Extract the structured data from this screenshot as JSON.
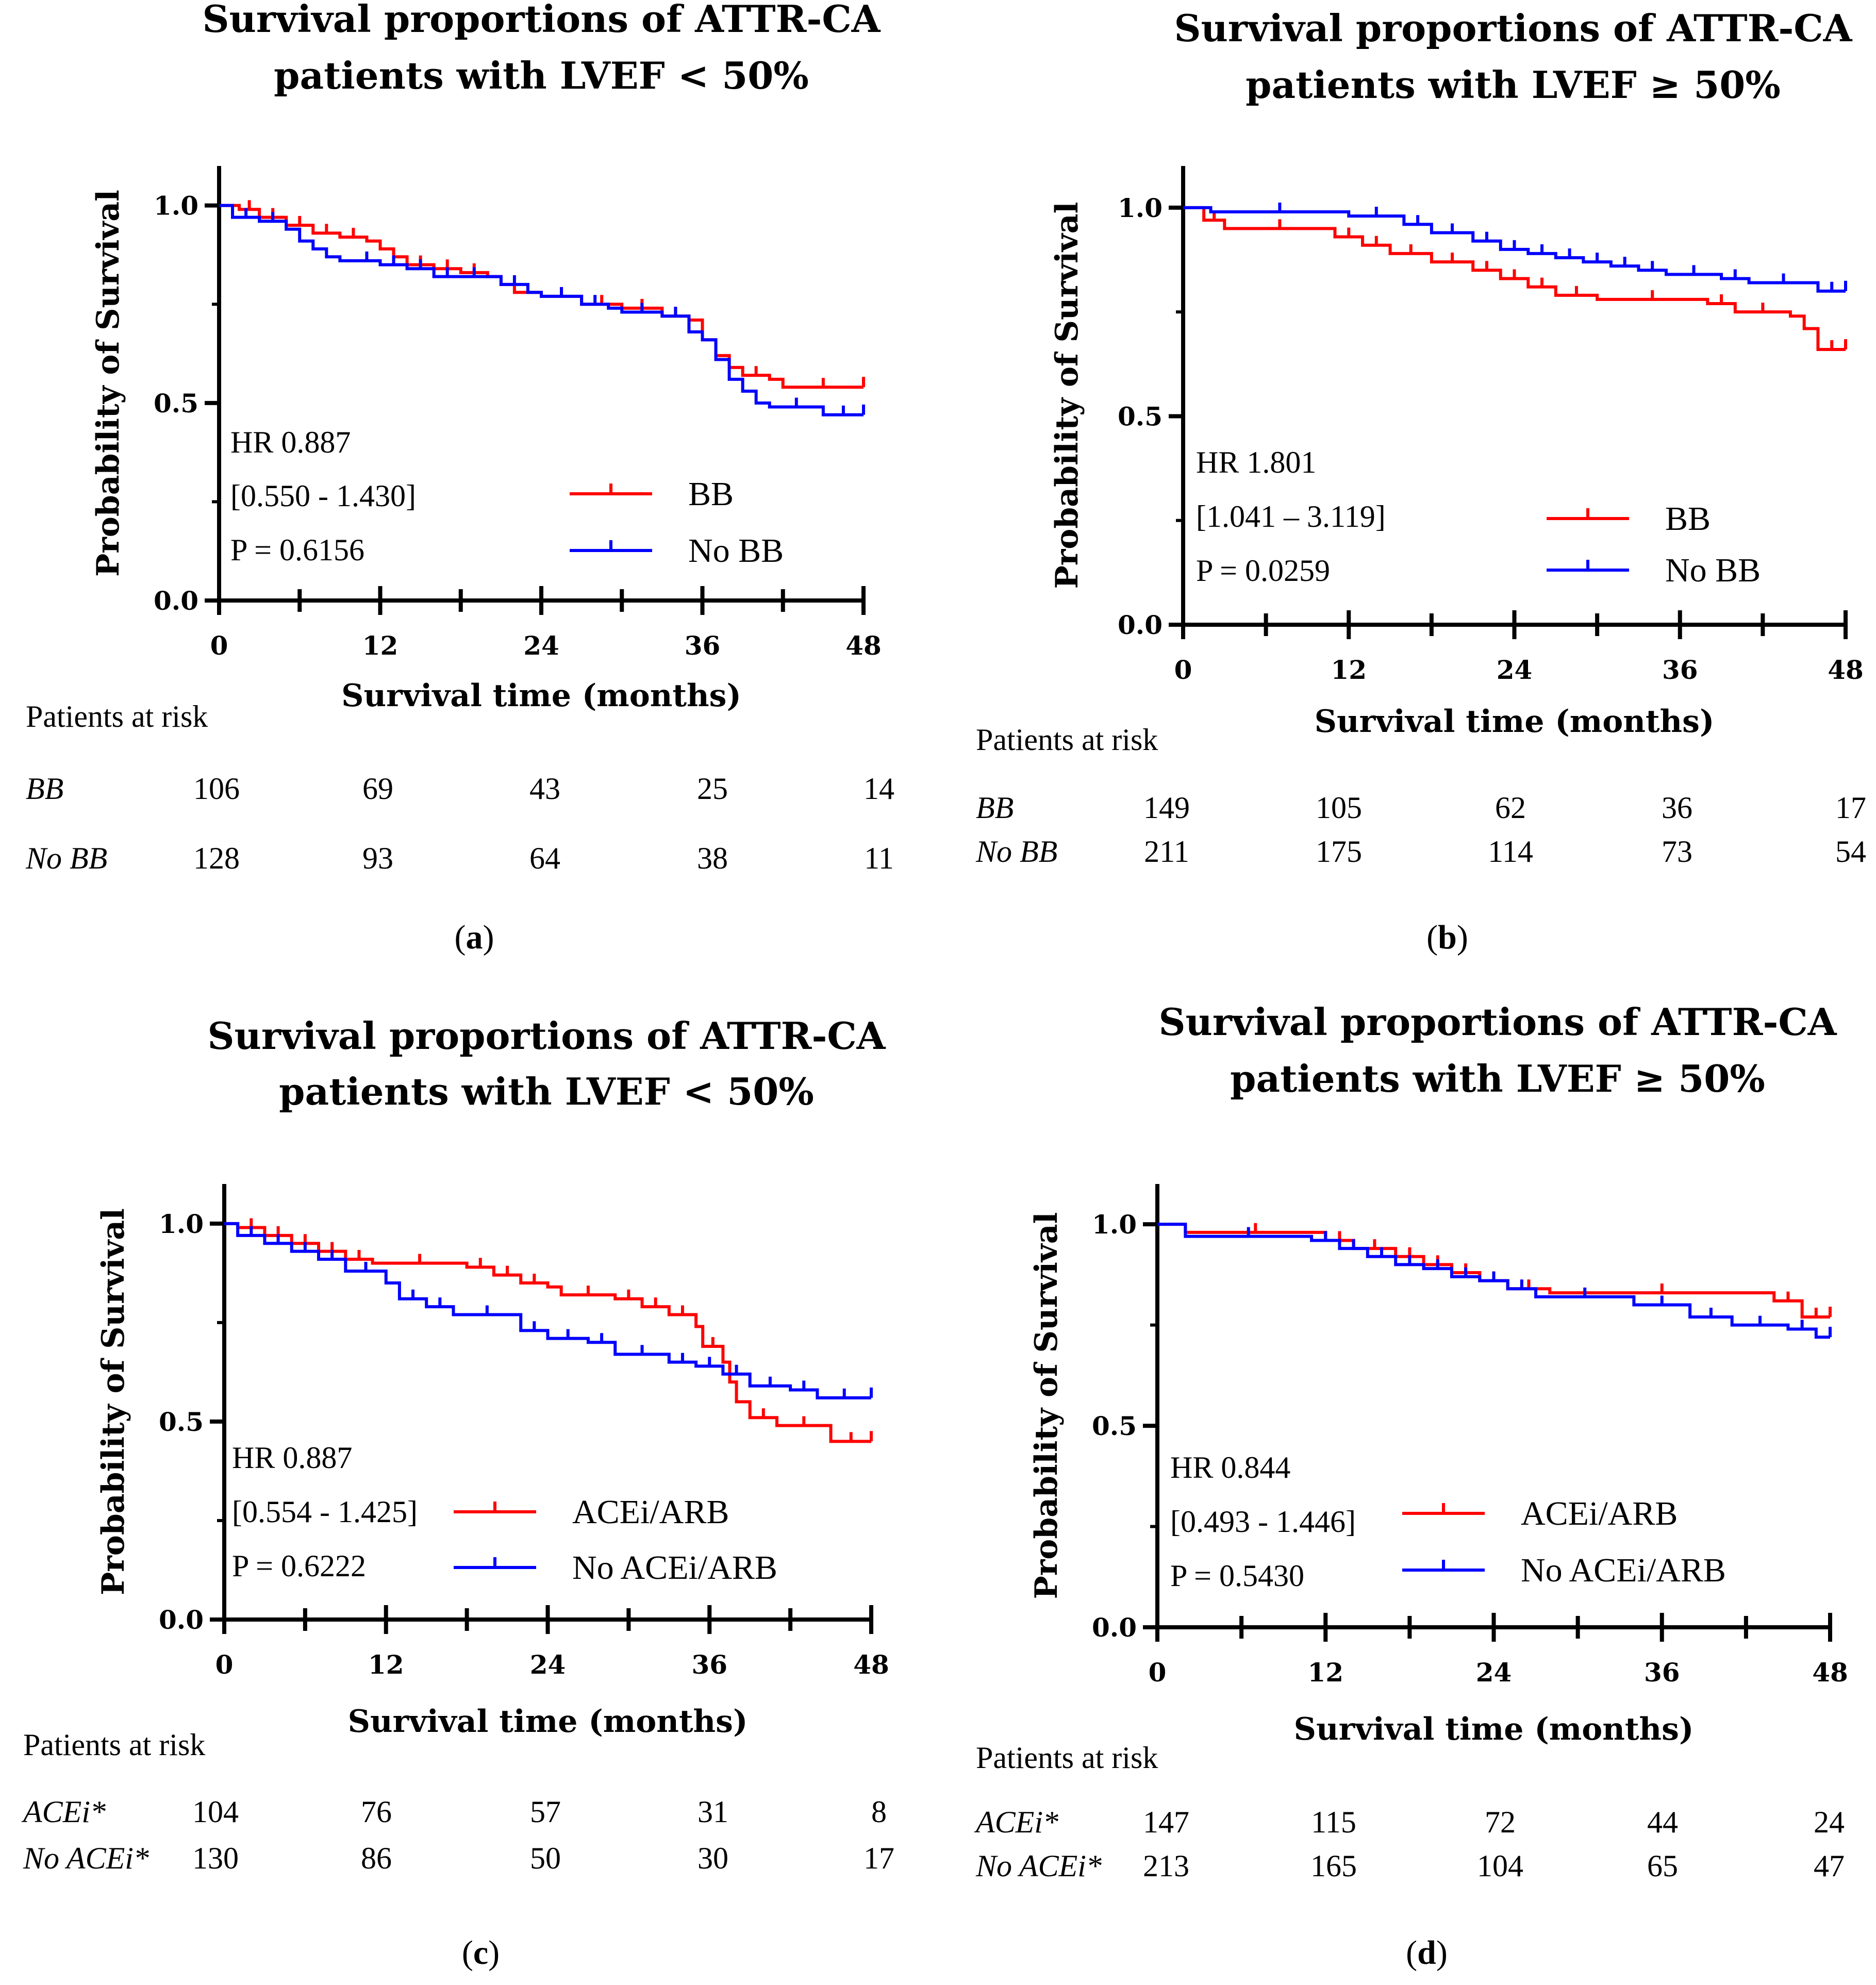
{
  "colors": {
    "treated": "#ff0000",
    "untreated": "#0000ff",
    "axis": "#000000"
  },
  "chart_data": [
    {
      "type": "line",
      "panel_label": "a",
      "title_line1": "Survival proportions of ATTR-CA",
      "title_line2": "patients with LVEF < 50%",
      "xlabel": "Survival time (months)",
      "ylabel": "Probability of Survival",
      "xlim": [
        0,
        48
      ],
      "ylim": [
        0,
        1.1
      ],
      "xticks": [
        "0",
        "12",
        "24",
        "36",
        "48"
      ],
      "yticks": [
        "0.0",
        "0.5",
        "1.0"
      ],
      "stats": {
        "hr": "HR 0.887",
        "ci": "[0.550 - 1.430]",
        "p": "P = 0.6156"
      },
      "series": [
        {
          "name": "BB",
          "color": "#ff0000",
          "x": [
            0,
            1.5,
            3,
            5,
            7,
            9,
            11,
            12,
            13,
            14,
            16,
            18,
            20,
            21,
            22,
            24,
            27,
            30,
            33,
            35,
            36,
            37,
            38,
            39,
            41,
            42,
            48
          ],
          "y": [
            1.0,
            0.99,
            0.97,
            0.95,
            0.93,
            0.92,
            0.91,
            0.89,
            0.87,
            0.85,
            0.84,
            0.83,
            0.82,
            0.8,
            0.78,
            0.77,
            0.75,
            0.74,
            0.72,
            0.71,
            0.66,
            0.62,
            0.59,
            0.57,
            0.56,
            0.54,
            0.54
          ]
        },
        {
          "name": "No BB",
          "color": "#0000ff",
          "x": [
            0,
            1,
            3,
            5,
            6,
            7,
            8,
            9,
            10,
            12,
            14,
            16,
            18,
            20,
            21,
            23,
            24,
            27,
            29,
            30,
            33,
            35,
            36,
            37,
            38,
            39,
            40,
            41,
            45,
            48
          ],
          "y": [
            1.0,
            0.97,
            0.96,
            0.94,
            0.91,
            0.89,
            0.87,
            0.86,
            0.86,
            0.85,
            0.84,
            0.82,
            0.82,
            0.82,
            0.8,
            0.78,
            0.77,
            0.75,
            0.74,
            0.73,
            0.72,
            0.68,
            0.66,
            0.61,
            0.56,
            0.53,
            0.5,
            0.49,
            0.47,
            0.47
          ]
        }
      ],
      "risk_table": {
        "heading": "Patients at risk",
        "rows": [
          {
            "label": "BB",
            "values": [
              "106",
              "69",
              "43",
              "25",
              "14"
            ]
          },
          {
            "label": "No BB",
            "values": [
              "128",
              "93",
              "64",
              "38",
              "11"
            ]
          }
        ]
      }
    },
    {
      "type": "line",
      "panel_label": "b",
      "title_line1": "Survival proportions of ATTR-CA",
      "title_line2": "patients with LVEF ≥ 50%",
      "xlabel": "Survival time (months)",
      "ylabel": "Probability of Survival",
      "xlim": [
        0,
        48
      ],
      "ylim": [
        0,
        1.1
      ],
      "xticks": [
        "0",
        "12",
        "24",
        "36",
        "48"
      ],
      "yticks": [
        "0.0",
        "0.5",
        "1.0"
      ],
      "stats": {
        "hr": "HR 1.801",
        "ci": "[1.041 – 3.119]",
        "p": "P = 0.0259"
      },
      "series": [
        {
          "name": "BB",
          "color": "#ff0000",
          "x": [
            0,
            1.5,
            3,
            11,
            13,
            15,
            18,
            21,
            23,
            25,
            27,
            30,
            38,
            40,
            44,
            45,
            46,
            48
          ],
          "y": [
            1.0,
            0.97,
            0.95,
            0.93,
            0.91,
            0.89,
            0.87,
            0.85,
            0.83,
            0.81,
            0.79,
            0.78,
            0.77,
            0.75,
            0.74,
            0.71,
            0.66,
            0.66
          ]
        },
        {
          "name": "No BB",
          "color": "#0000ff",
          "x": [
            0,
            2,
            12,
            16,
            18,
            21,
            23,
            25,
            27,
            29,
            31,
            33,
            35,
            39,
            41,
            46,
            48
          ],
          "y": [
            1.0,
            0.99,
            0.98,
            0.96,
            0.94,
            0.92,
            0.9,
            0.89,
            0.88,
            0.87,
            0.86,
            0.85,
            0.84,
            0.83,
            0.82,
            0.8,
            0.8
          ]
        }
      ],
      "risk_table": {
        "heading": "Patients at risk",
        "rows": [
          {
            "label": "BB",
            "values": [
              "149",
              "105",
              "62",
              "36",
              "17"
            ]
          },
          {
            "label": "No BB",
            "values": [
              "211",
              "175",
              "114",
              "73",
              "54"
            ]
          }
        ]
      }
    },
    {
      "type": "line",
      "panel_label": "c",
      "title_line1": "Survival proportions of ATTR-CA",
      "title_line2": "patients with LVEF < 50%",
      "xlabel": "Survival time (months)",
      "ylabel": "Probability of Survival",
      "xlim": [
        0,
        48
      ],
      "ylim": [
        0,
        1.1
      ],
      "xticks": [
        "0",
        "12",
        "24",
        "36",
        "48"
      ],
      "yticks": [
        "0.0",
        "0.5",
        "1.0"
      ],
      "stats": {
        "hr": "HR 0.887",
        "ci": "[0.554 - 1.425]",
        "p": "P = 0.6222"
      },
      "series": [
        {
          "name": "ACEi/ARB",
          "color": "#ff0000",
          "x": [
            0,
            1,
            3,
            5,
            7,
            9,
            11,
            18,
            20,
            22,
            24,
            25,
            29,
            31,
            33,
            35,
            35.5,
            37,
            37.5,
            38,
            39,
            41,
            45,
            48
          ],
          "y": [
            1.0,
            0.99,
            0.97,
            0.95,
            0.93,
            0.91,
            0.9,
            0.89,
            0.87,
            0.85,
            0.84,
            0.82,
            0.81,
            0.79,
            0.77,
            0.74,
            0.69,
            0.65,
            0.6,
            0.55,
            0.51,
            0.49,
            0.45,
            0.45
          ]
        },
        {
          "name": "No ACEi/ARB",
          "color": "#0000ff",
          "x": [
            0,
            1,
            3,
            5,
            7,
            9,
            12,
            13,
            15,
            17,
            22,
            24,
            27,
            29,
            33,
            35,
            37,
            39,
            42,
            44,
            48
          ],
          "y": [
            1.0,
            0.97,
            0.95,
            0.93,
            0.91,
            0.88,
            0.85,
            0.81,
            0.79,
            0.77,
            0.73,
            0.71,
            0.7,
            0.67,
            0.65,
            0.64,
            0.62,
            0.59,
            0.58,
            0.56,
            0.56
          ]
        }
      ],
      "risk_table": {
        "heading": "Patients at risk",
        "rows": [
          {
            "label": "ACEi*",
            "values": [
              "104",
              "76",
              "57",
              "31",
              "8"
            ]
          },
          {
            "label": "No ACEi*",
            "values": [
              "130",
              "86",
              "50",
              "30",
              "17"
            ]
          }
        ]
      }
    },
    {
      "type": "line",
      "panel_label": "d",
      "title_line1": "Survival proportions of ATTR-CA",
      "title_line2": "patients with LVEF ≥ 50%",
      "xlabel": "Survival time (months)",
      "ylabel": "Probability of Survival",
      "xlim": [
        0,
        48
      ],
      "ylim": [
        0,
        1.1
      ],
      "xticks": [
        "0",
        "12",
        "24",
        "36",
        "48"
      ],
      "yticks": [
        "0.0",
        "0.5",
        "1.0"
      ],
      "stats": {
        "hr": "HR 0.844",
        "ci": "[0.493 - 1.446]",
        "p": "P = 0.5430"
      },
      "series": [
        {
          "name": "ACEi/ARB",
          "color": "#ff0000",
          "x": [
            0,
            2,
            12,
            14,
            17,
            19,
            21,
            23,
            25,
            28,
            44,
            46,
            48
          ],
          "y": [
            1.0,
            0.98,
            0.96,
            0.94,
            0.92,
            0.9,
            0.88,
            0.86,
            0.84,
            0.83,
            0.81,
            0.77,
            0.77
          ]
        },
        {
          "name": "No ACEi/ARB",
          "color": "#0000ff",
          "x": [
            0,
            2,
            11,
            13,
            15,
            17,
            19,
            21,
            23,
            25,
            27,
            34,
            38,
            41,
            45,
            47,
            48
          ],
          "y": [
            1.0,
            0.97,
            0.96,
            0.94,
            0.92,
            0.9,
            0.89,
            0.87,
            0.86,
            0.84,
            0.82,
            0.8,
            0.77,
            0.75,
            0.74,
            0.72,
            0.72
          ]
        }
      ],
      "risk_table": {
        "heading": "Patients at risk",
        "rows": [
          {
            "label": "ACEi*",
            "values": [
              "147",
              "115",
              "72",
              "44",
              "24"
            ]
          },
          {
            "label": "No ACEi*",
            "values": [
              "213",
              "165",
              "104",
              "65",
              "47"
            ]
          }
        ]
      }
    }
  ]
}
